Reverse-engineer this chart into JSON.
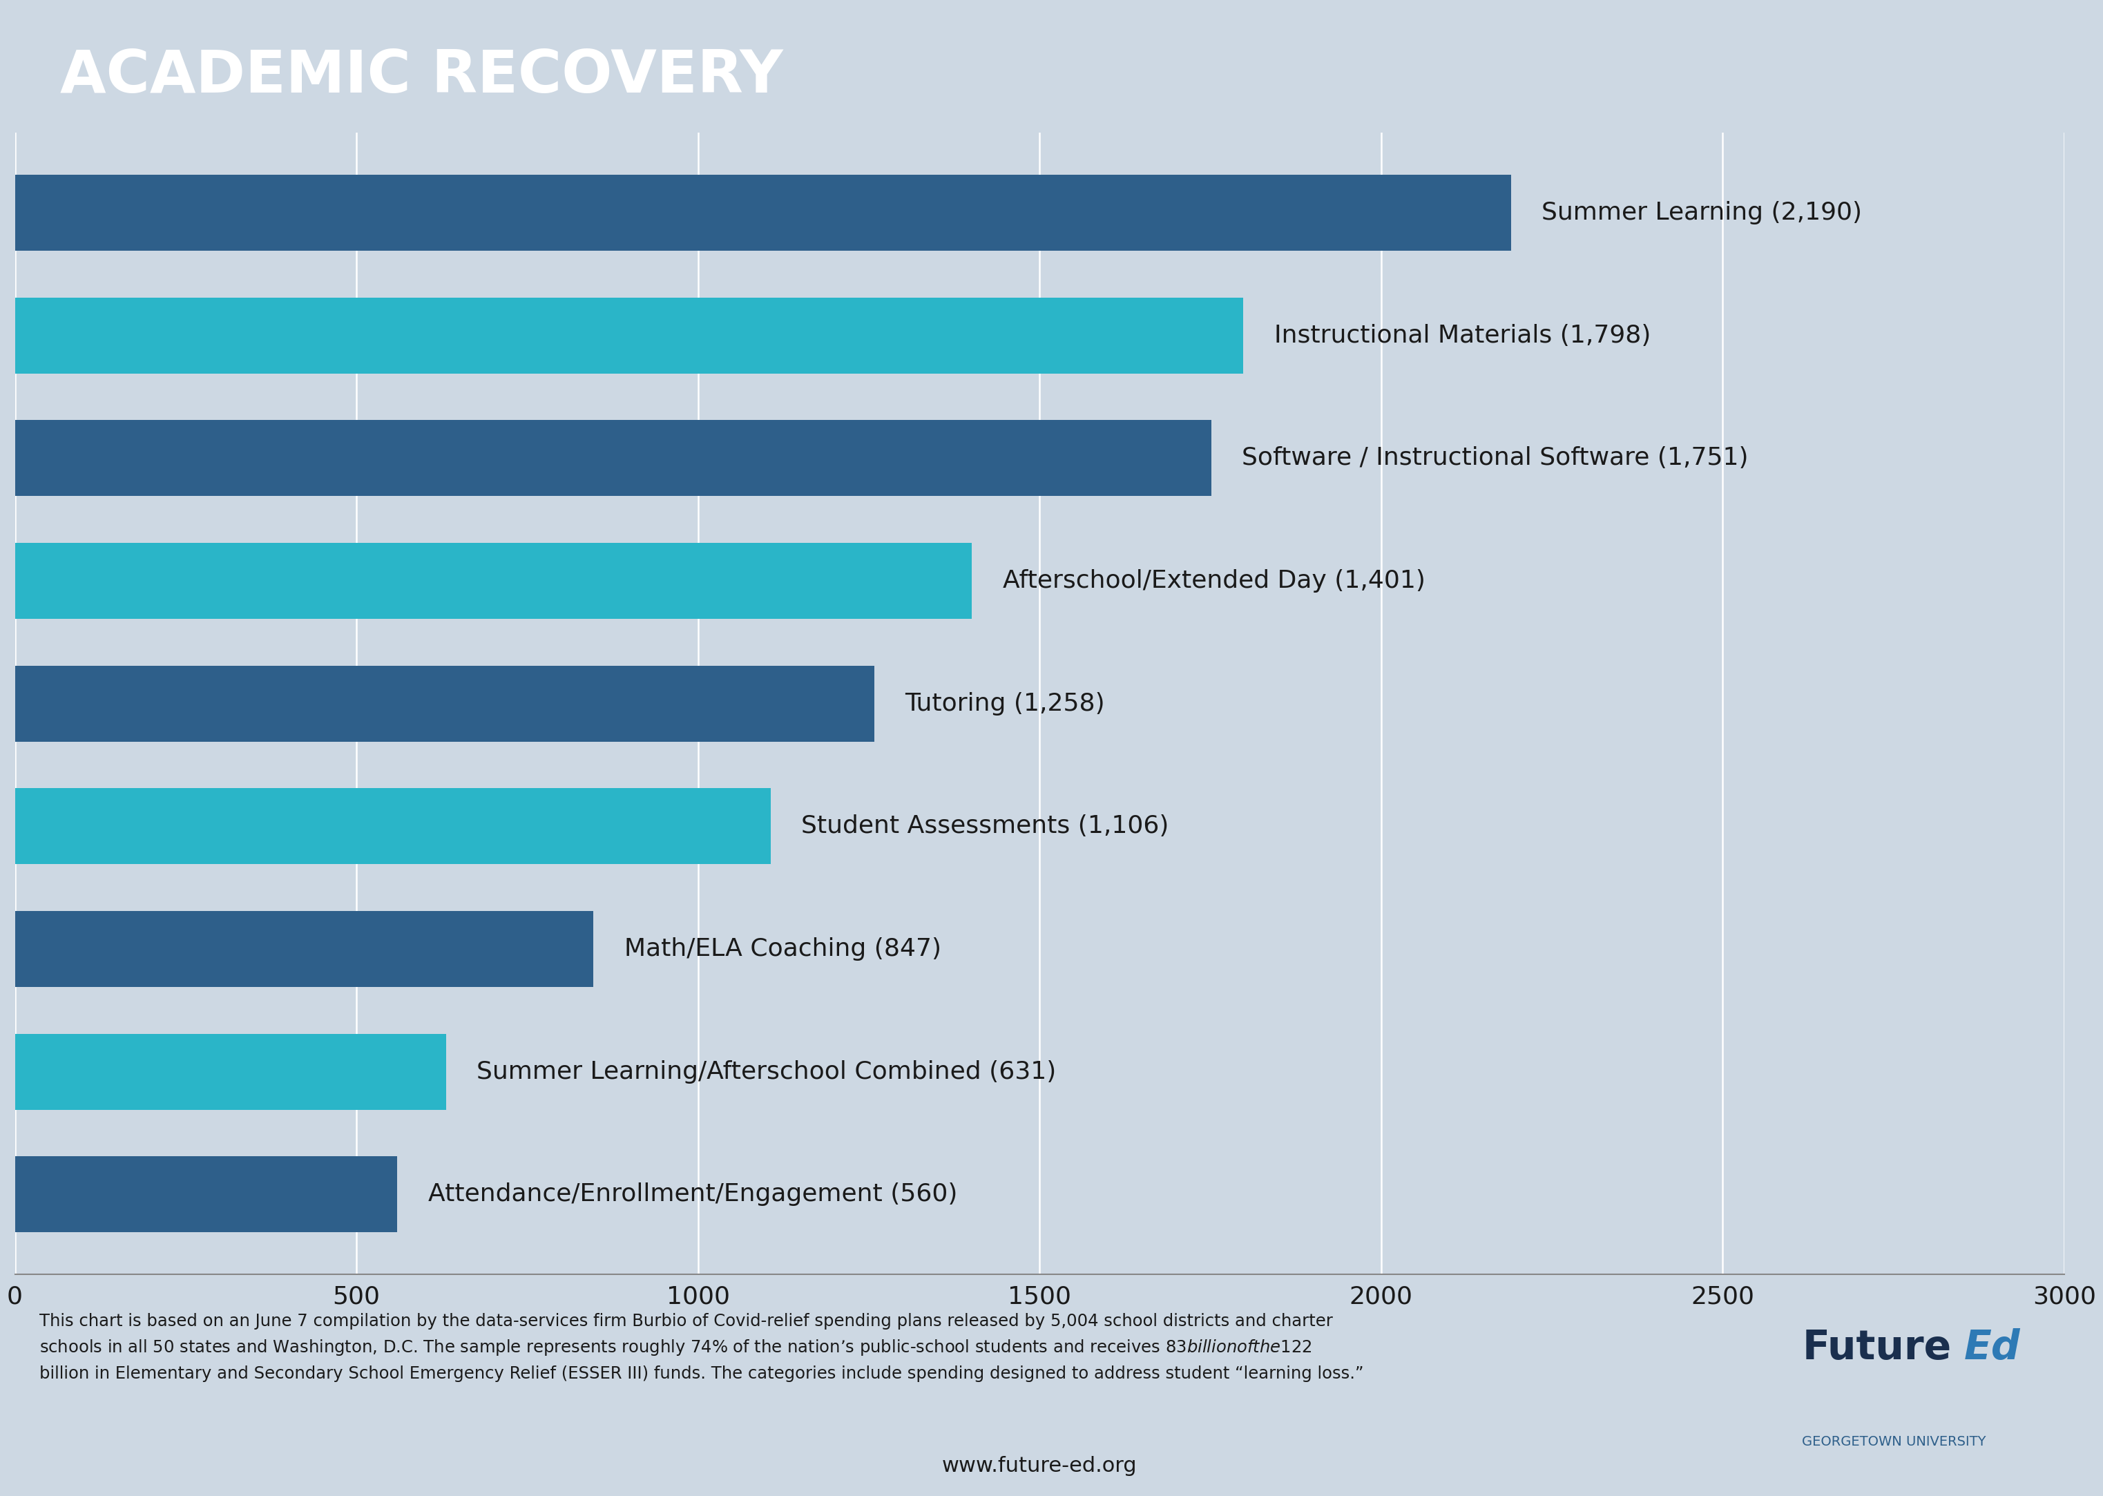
{
  "title": "ACADEMIC RECOVERY",
  "title_bg_color": "#1a2f4e",
  "title_text_color": "#ffffff",
  "chart_bg_color": "#cdd8e3",
  "categories": [
    "Summer Learning (2,190)",
    "Instructional Materials (1,798)",
    "Software / Instructional Software (1,751)",
    "Afterschool/Extended Day (1,401)",
    "Tutoring (1,258)",
    "Student Assessments (1,106)",
    "Math/ELA Coaching (847)",
    "Summer Learning/Afterschool Combined (631)",
    "Attendance/Enrollment/Engagement (560)"
  ],
  "values": [
    2190,
    1798,
    1751,
    1401,
    1258,
    1106,
    847,
    631,
    560
  ],
  "bar_colors": [
    "#2e5f8a",
    "#2ab5c8",
    "#2e5f8a",
    "#2ab5c8",
    "#2e5f8a",
    "#2ab5c8",
    "#2e5f8a",
    "#2ab5c8",
    "#2e5f8a"
  ],
  "xlim": [
    0,
    3000
  ],
  "xticks": [
    0,
    500,
    1000,
    1500,
    2000,
    2500,
    3000
  ],
  "footnote_line1": "This chart is based on an June 7 compilation by the data-services firm Burbio of Covid-relief spending plans released by 5,004 school districts and charter",
  "footnote_line2": "schools in all 50 states and Washington, D.C. The sample represents roughly 74% of the nation’s public-school students and receives $83 billion of the $122",
  "footnote_line3": "billion in Elementary and Secondary School Emergency Relief (ESSER III) funds. The categories include spending designed to address student “learning loss.”",
  "website": "www.future-ed.org",
  "logo_future_color": "#1a2f4e",
  "logo_ed_color": "#2e7ab5",
  "logo_subtitle": "GEORGETOWN UNIVERSITY",
  "logo_subtitle_color": "#2e5f8a",
  "footer_bg_color": "#cdd8e3",
  "grid_color": "#ffffff",
  "spine_color": "#888888",
  "text_color": "#1a1a1a"
}
